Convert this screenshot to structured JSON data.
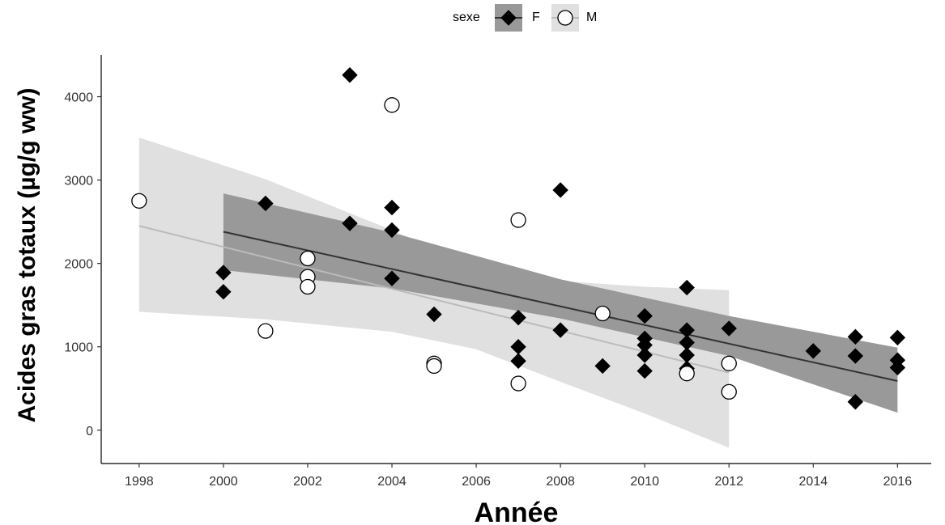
{
  "chart_data": {
    "type": "scatter",
    "xlabel": "Année",
    "ylabel": "Acides gras totaux (µg/g ww)",
    "xlim": [
      1997.1,
      2016.8
    ],
    "ylim": [
      -400,
      4500
    ],
    "x_ticks": [
      1998,
      2000,
      2002,
      2004,
      2006,
      2008,
      2010,
      2012,
      2014,
      2016
    ],
    "y_ticks": [
      0,
      1000,
      2000,
      3000,
      4000
    ],
    "grid": false,
    "legend": {
      "title": "sexe",
      "position": "top",
      "entries": [
        "F",
        "M"
      ]
    },
    "series": [
      {
        "name": "F",
        "marker": "filled-diamond",
        "color": "#000000",
        "points": [
          [
            2000,
            1890
          ],
          [
            2000,
            1660
          ],
          [
            2001,
            2720
          ],
          [
            2003,
            4260
          ],
          [
            2003,
            2480
          ],
          [
            2004,
            2670
          ],
          [
            2004,
            2400
          ],
          [
            2004,
            1820
          ],
          [
            2005,
            1390
          ],
          [
            2007,
            1350
          ],
          [
            2007,
            1000
          ],
          [
            2007,
            830
          ],
          [
            2008,
            2880
          ],
          [
            2008,
            1200
          ],
          [
            2009,
            770
          ],
          [
            2010,
            1370
          ],
          [
            2010,
            1100
          ],
          [
            2010,
            1020
          ],
          [
            2010,
            900
          ],
          [
            2010,
            710
          ],
          [
            2011,
            1710
          ],
          [
            2011,
            1200
          ],
          [
            2011,
            1050
          ],
          [
            2011,
            900
          ],
          [
            2011,
            740
          ],
          [
            2012,
            1220
          ],
          [
            2012,
            800
          ],
          [
            2014,
            950
          ],
          [
            2015,
            1120
          ],
          [
            2015,
            890
          ],
          [
            2015,
            340
          ],
          [
            2016,
            1110
          ],
          [
            2016,
            840
          ],
          [
            2016,
            750
          ]
        ],
        "fit": {
          "line": [
            [
              2000,
              2380
            ],
            [
              2016,
              590
            ]
          ],
          "upper": [
            [
              2000,
              2840
            ],
            [
              2004,
              2370
            ],
            [
              2008,
              1810
            ],
            [
              2012,
              1370
            ],
            [
              2016,
              990
            ]
          ],
          "lower": [
            [
              2000,
              1920
            ],
            [
              2004,
              1700
            ],
            [
              2008,
              1340
            ],
            [
              2012,
              890
            ],
            [
              2016,
              210
            ]
          ],
          "line_color": "#333333",
          "band_color": "#999999"
        }
      },
      {
        "name": "M",
        "marker": "open-circle",
        "color": "#ffffff",
        "points": [
          [
            1998,
            2750
          ],
          [
            2001,
            1190
          ],
          [
            2002,
            2060
          ],
          [
            2002,
            1840
          ],
          [
            2002,
            1720
          ],
          [
            2004,
            3900
          ],
          [
            2005,
            800
          ],
          [
            2005,
            770
          ],
          [
            2007,
            2520
          ],
          [
            2007,
            560
          ],
          [
            2009,
            1400
          ],
          [
            2011,
            680
          ],
          [
            2012,
            800
          ],
          [
            2012,
            460
          ]
        ],
        "fit": {
          "line": [
            [
              1998,
              2450
            ],
            [
              2012,
              690
            ]
          ],
          "upper": [
            [
              1998,
              3510
            ],
            [
              2001,
              3010
            ],
            [
              2004,
              2400
            ],
            [
              2006,
              1960
            ],
            [
              2008,
              1790
            ],
            [
              2010,
              1720
            ],
            [
              2012,
              1680
            ]
          ],
          "lower": [
            [
              1998,
              1420
            ],
            [
              2001,
              1330
            ],
            [
              2004,
              1180
            ],
            [
              2006,
              970
            ],
            [
              2008,
              580
            ],
            [
              2010,
              200
            ],
            [
              2012,
              -210
            ]
          ],
          "line_color": "#bbbbbb",
          "band_color": "#e0e0e0"
        }
      }
    ]
  }
}
